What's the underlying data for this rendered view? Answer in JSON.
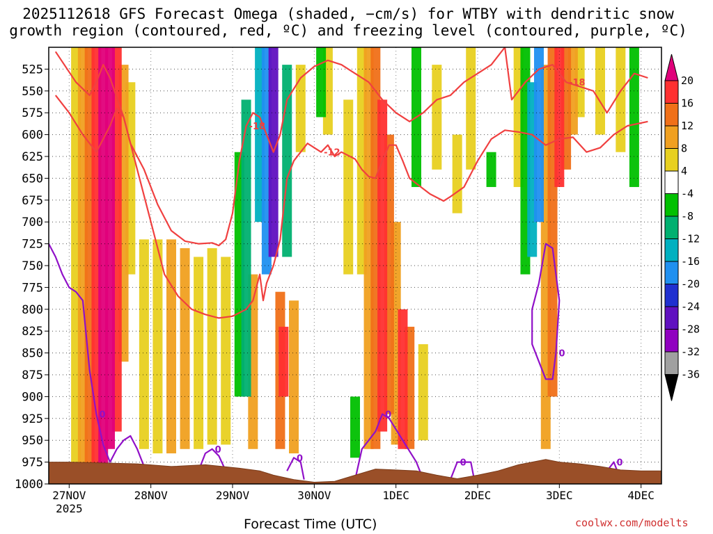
{
  "chart_data": {
    "type": "heatmap",
    "title_line1": "2025112618 GFS Forecast Omega (shaded, −cm/s) for WTBY with dendritic snow",
    "title_line2": "growth region (contoured, red, ºC) and freezing level (contoured, purple, ºC)",
    "xlabel": "Forecast Time (UTC)",
    "credit": "coolwx.com/modelts",
    "x_ticks": [
      "27NOV",
      "28NOV",
      "29NOV",
      "30NOV",
      "1DEC",
      "2DEC",
      "3DEC",
      "4DEC"
    ],
    "x_tick_sub": "2025",
    "x_range_hours": [
      -6,
      174
    ],
    "y_ticks": [
      525,
      550,
      575,
      600,
      625,
      650,
      675,
      700,
      725,
      750,
      775,
      800,
      825,
      850,
      875,
      900,
      925,
      950,
      975,
      1000
    ],
    "y_range_hpa": [
      500,
      1000
    ],
    "colorbar_levels": [
      20,
      16,
      12,
      8,
      4,
      -4,
      -8,
      -12,
      -16,
      -20,
      -24,
      -28,
      -32,
      -36
    ],
    "colorbar_colors": [
      "#e0007a",
      "#ff3030",
      "#f07018",
      "#f0a020",
      "#e8d020",
      "#ffffff",
      "#00c000",
      "#00b070",
      "#00b0c0",
      "#2090f0",
      "#2030d0",
      "#6010c0",
      "#9000c0",
      "#a0a0a0",
      "#000000"
    ],
    "omega_shading": [
      {
        "h": 2,
        "p0": 500,
        "p1": 985,
        "v": 6
      },
      {
        "h": 4,
        "p0": 500,
        "p1": 985,
        "v": 10
      },
      {
        "h": 6,
        "p0": 500,
        "p1": 985,
        "v": 14
      },
      {
        "h": 8,
        "p0": 500,
        "p1": 985,
        "v": 18
      },
      {
        "h": 10,
        "p0": 500,
        "p1": 980,
        "v": 22
      },
      {
        "h": 12,
        "p0": 500,
        "p1": 960,
        "v": 24
      },
      {
        "h": 14,
        "p0": 500,
        "p1": 940,
        "v": 18
      },
      {
        "h": 16,
        "p0": 520,
        "p1": 860,
        "v": 10
      },
      {
        "h": 18,
        "p0": 540,
        "p1": 760,
        "v": 6
      },
      {
        "h": 22,
        "p0": 720,
        "p1": 960,
        "v": 5
      },
      {
        "h": 26,
        "p0": 720,
        "p1": 965,
        "v": 6
      },
      {
        "h": 30,
        "p0": 720,
        "p1": 965,
        "v": 8
      },
      {
        "h": 34,
        "p0": 730,
        "p1": 960,
        "v": 9
      },
      {
        "h": 38,
        "p0": 740,
        "p1": 960,
        "v": 7
      },
      {
        "h": 42,
        "p0": 730,
        "p1": 955,
        "v": 6
      },
      {
        "h": 46,
        "p0": 740,
        "p1": 955,
        "v": 5
      },
      {
        "h": 50,
        "p0": 620,
        "p1": 900,
        "v": -8
      },
      {
        "h": 52,
        "p0": 560,
        "p1": 900,
        "v": -12
      },
      {
        "h": 54,
        "p0": 760,
        "p1": 960,
        "v": 8
      },
      {
        "h": 56,
        "p0": 500,
        "p1": 700,
        "v": -16
      },
      {
        "h": 58,
        "p0": 500,
        "p1": 760,
        "v": -20
      },
      {
        "h": 60,
        "p0": 500,
        "p1": 740,
        "v": -28
      },
      {
        "h": 62,
        "p0": 780,
        "p1": 960,
        "v": 14
      },
      {
        "h": 63,
        "p0": 820,
        "p1": 900,
        "v": 18
      },
      {
        "h": 64,
        "p0": 520,
        "p1": 740,
        "v": -12
      },
      {
        "h": 66,
        "p0": 790,
        "p1": 965,
        "v": 8
      },
      {
        "h": 68,
        "p0": 520,
        "p1": 620,
        "v": 5
      },
      {
        "h": 74,
        "p0": 500,
        "p1": 580,
        "v": -8
      },
      {
        "h": 76,
        "p0": 500,
        "p1": 600,
        "v": 5
      },
      {
        "h": 82,
        "p0": 560,
        "p1": 760,
        "v": 5
      },
      {
        "h": 84,
        "p0": 900,
        "p1": 970,
        "v": -8
      },
      {
        "h": 86,
        "p0": 500,
        "p1": 760,
        "v": 6
      },
      {
        "h": 88,
        "p0": 500,
        "p1": 960,
        "v": 10
      },
      {
        "h": 90,
        "p0": 500,
        "p1": 960,
        "v": 14
      },
      {
        "h": 92,
        "p0": 560,
        "p1": 940,
        "v": 18
      },
      {
        "h": 94,
        "p0": 600,
        "p1": 920,
        "v": 12
      },
      {
        "h": 96,
        "p0": 700,
        "p1": 955,
        "v": 10
      },
      {
        "h": 98,
        "p0": 800,
        "p1": 960,
        "v": 16
      },
      {
        "h": 100,
        "p0": 820,
        "p1": 960,
        "v": 14
      },
      {
        "h": 102,
        "p0": 500,
        "p1": 660,
        "v": -8
      },
      {
        "h": 104,
        "p0": 840,
        "p1": 950,
        "v": 6
      },
      {
        "h": 108,
        "p0": 520,
        "p1": 640,
        "v": 5
      },
      {
        "h": 114,
        "p0": 600,
        "p1": 690,
        "v": 5
      },
      {
        "h": 118,
        "p0": 500,
        "p1": 640,
        "v": 5
      },
      {
        "h": 124,
        "p0": 620,
        "p1": 660,
        "v": -8
      },
      {
        "h": 132,
        "p0": 500,
        "p1": 660,
        "v": 5
      },
      {
        "h": 134,
        "p0": 500,
        "p1": 760,
        "v": -8
      },
      {
        "h": 136,
        "p0": 540,
        "p1": 740,
        "v": -16
      },
      {
        "h": 138,
        "p0": 500,
        "p1": 700,
        "v": -20
      },
      {
        "h": 140,
        "p0": 520,
        "p1": 960,
        "v": 8
      },
      {
        "h": 142,
        "p0": 500,
        "p1": 900,
        "v": 12
      },
      {
        "h": 144,
        "p0": 500,
        "p1": 660,
        "v": 16
      },
      {
        "h": 146,
        "p0": 500,
        "p1": 640,
        "v": 12
      },
      {
        "h": 148,
        "p0": 500,
        "p1": 600,
        "v": 8
      },
      {
        "h": 150,
        "p0": 500,
        "p1": 580,
        "v": 6
      },
      {
        "h": 156,
        "p0": 500,
        "p1": 600,
        "v": 5
      },
      {
        "h": 162,
        "p0": 500,
        "p1": 620,
        "v": 6
      },
      {
        "h": 166,
        "p0": 500,
        "p1": 660,
        "v": -8
      }
    ],
    "dgz_contours": [
      {
        "label": "-18",
        "points": [
          [
            -4,
            505
          ],
          [
            2,
            540
          ],
          [
            6,
            555
          ],
          [
            8,
            540
          ],
          [
            10,
            520
          ],
          [
            12,
            535
          ],
          [
            16,
            580
          ],
          [
            18,
            610
          ],
          [
            22,
            640
          ],
          [
            26,
            680
          ],
          [
            30,
            710
          ],
          [
            34,
            722
          ],
          [
            38,
            725
          ],
          [
            42,
            724
          ],
          [
            44,
            727
          ],
          [
            46,
            720
          ],
          [
            48,
            690
          ],
          [
            50,
            630
          ],
          [
            52,
            590
          ],
          [
            54,
            575
          ],
          [
            56,
            580
          ],
          [
            58,
            600
          ],
          [
            60,
            620
          ],
          [
            62,
            600
          ],
          [
            64,
            560
          ],
          [
            68,
            535
          ],
          [
            72,
            522
          ],
          [
            76,
            515
          ],
          [
            80,
            520
          ],
          [
            84,
            530
          ],
          [
            88,
            540
          ],
          [
            92,
            560
          ],
          [
            96,
            575
          ],
          [
            100,
            585
          ],
          [
            104,
            575
          ],
          [
            108,
            560
          ],
          [
            112,
            555
          ],
          [
            116,
            540
          ],
          [
            120,
            530
          ],
          [
            124,
            520
          ],
          [
            128,
            500
          ]
        ]
      },
      {
        "label": "-12",
        "points": [
          [
            -4,
            555
          ],
          [
            0,
            575
          ],
          [
            4,
            600
          ],
          [
            8,
            620
          ],
          [
            12,
            590
          ],
          [
            14,
            570
          ],
          [
            16,
            580
          ],
          [
            20,
            640
          ],
          [
            24,
            700
          ],
          [
            28,
            760
          ],
          [
            32,
            785
          ],
          [
            36,
            800
          ],
          [
            40,
            806
          ],
          [
            44,
            810
          ],
          [
            48,
            808
          ],
          [
            52,
            800
          ],
          [
            54,
            790
          ],
          [
            56,
            760
          ],
          [
            57,
            790
          ],
          [
            58,
            770
          ],
          [
            60,
            750
          ],
          [
            62,
            720
          ],
          [
            64,
            650
          ],
          [
            66,
            630
          ],
          [
            70,
            610
          ],
          [
            74,
            620
          ],
          [
            76,
            612
          ],
          [
            78,
            625
          ],
          [
            80,
            620
          ],
          [
            84,
            628
          ],
          [
            86,
            640
          ],
          [
            88,
            648
          ],
          [
            90,
            650
          ],
          [
            92,
            630
          ],
          [
            94,
            612
          ],
          [
            96,
            612
          ],
          [
            98,
            630
          ],
          [
            100,
            650
          ],
          [
            104,
            662
          ],
          [
            106,
            668
          ],
          [
            108,
            672
          ],
          [
            110,
            676
          ],
          [
            112,
            671
          ],
          [
            116,
            660
          ],
          [
            120,
            630
          ],
          [
            124,
            605
          ],
          [
            128,
            595
          ],
          [
            132,
            597
          ],
          [
            136,
            600
          ],
          [
            140,
            612
          ],
          [
            144,
            605
          ],
          [
            148,
            603
          ],
          [
            152,
            620
          ],
          [
            156,
            615
          ],
          [
            160,
            600
          ],
          [
            164,
            590
          ],
          [
            170,
            585
          ]
        ]
      },
      {
        "label": "-18",
        "points": [
          [
            128,
            500
          ],
          [
            130,
            560
          ],
          [
            134,
            540
          ],
          [
            138,
            525
          ],
          [
            142,
            520
          ],
          [
            146,
            540
          ],
          [
            150,
            545
          ],
          [
            154,
            550
          ],
          [
            158,
            575
          ],
          [
            162,
            550
          ],
          [
            166,
            530
          ],
          [
            170,
            535
          ]
        ]
      }
    ],
    "freezing_level": [
      {
        "label": "0",
        "points": [
          [
            -6,
            725
          ],
          [
            -4,
            740
          ],
          [
            -2,
            760
          ],
          [
            0,
            775
          ],
          [
            2,
            780
          ],
          [
            4,
            790
          ],
          [
            6,
            870
          ],
          [
            8,
            920
          ],
          [
            10,
            955
          ],
          [
            12,
            975
          ],
          [
            14,
            960
          ],
          [
            16,
            950
          ],
          [
            18,
            945
          ],
          [
            20,
            960
          ],
          [
            22,
            980
          ],
          [
            24,
            990
          ]
        ]
      },
      {
        "label": "0",
        "points": [
          [
            38,
            985
          ],
          [
            40,
            965
          ],
          [
            42,
            960
          ],
          [
            44,
            968
          ],
          [
            46,
            985
          ]
        ]
      },
      {
        "label": "0",
        "points": [
          [
            64,
            985
          ],
          [
            66,
            970
          ],
          [
            68,
            975
          ],
          [
            69,
            995
          ]
        ]
      },
      {
        "label": "0",
        "points": [
          [
            84,
            995
          ],
          [
            86,
            960
          ],
          [
            90,
            940
          ],
          [
            92,
            920
          ],
          [
            94,
            925
          ],
          [
            98,
            950
          ],
          [
            102,
            975
          ],
          [
            104,
            995
          ]
        ]
      },
      {
        "label": "0",
        "points": [
          [
            112,
            995
          ],
          [
            114,
            975
          ],
          [
            118,
            975
          ],
          [
            119,
            995
          ]
        ]
      },
      {
        "label": "0",
        "points": [
          [
            138,
            770
          ],
          [
            140,
            725
          ],
          [
            142,
            730
          ],
          [
            144,
            790
          ],
          [
            143,
            850
          ],
          [
            142,
            880
          ],
          [
            140,
            880
          ],
          [
            138,
            860
          ],
          [
            136,
            840
          ],
          [
            136,
            800
          ],
          [
            138,
            770
          ]
        ]
      },
      {
        "label": "0",
        "points": [
          [
            158,
            985
          ],
          [
            160,
            975
          ],
          [
            161,
            985
          ]
        ]
      }
    ],
    "terrain": [
      [
        -6,
        975
      ],
      [
        0,
        975
      ],
      [
        10,
        976
      ],
      [
        20,
        977
      ],
      [
        30,
        980
      ],
      [
        40,
        978
      ],
      [
        50,
        982
      ],
      [
        56,
        985
      ],
      [
        60,
        990
      ],
      [
        66,
        995
      ],
      [
        72,
        998
      ],
      [
        78,
        997
      ],
      [
        84,
        990
      ],
      [
        90,
        983
      ],
      [
        96,
        984
      ],
      [
        102,
        985
      ],
      [
        108,
        990
      ],
      [
        114,
        994
      ],
      [
        120,
        990
      ],
      [
        126,
        985
      ],
      [
        132,
        978
      ],
      [
        136,
        975
      ],
      [
        140,
        972
      ],
      [
        144,
        975
      ],
      [
        150,
        977
      ],
      [
        156,
        980
      ],
      [
        162,
        984
      ],
      [
        168,
        985
      ],
      [
        174,
        985
      ]
    ]
  }
}
